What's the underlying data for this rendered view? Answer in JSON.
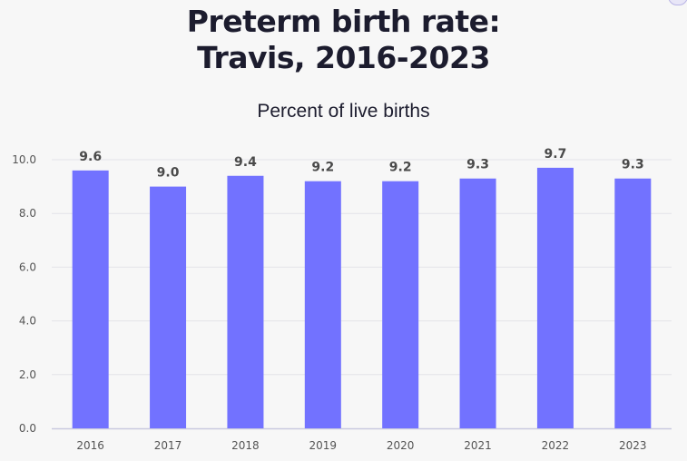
{
  "header": {
    "title_line1": "Preterm birth rate:",
    "title_line2": "Travis, 2016-2023",
    "subtitle": "Percent of live births"
  },
  "colors": {
    "bar": "#7272ff",
    "grid": "#e3e3e8",
    "axis": "#c9c9e0",
    "background": "#f7f7f7"
  },
  "chart_data": {
    "type": "bar",
    "title": "Preterm birth rate: Travis, 2016-2023",
    "subtitle": "Percent of live births",
    "categories": [
      "2016",
      "2017",
      "2018",
      "2019",
      "2020",
      "2021",
      "2022",
      "2023"
    ],
    "values": [
      9.6,
      9.0,
      9.4,
      9.2,
      9.2,
      9.3,
      9.7,
      9.3
    ],
    "data_labels": [
      "9.6",
      "9.0",
      "9.4",
      "9.2",
      "9.2",
      "9.3",
      "9.7",
      "9.3"
    ],
    "y_ticks": [
      "0.0",
      "2.0",
      "4.0",
      "6.0",
      "8.0",
      "10.0"
    ],
    "ylim": [
      0,
      10
    ],
    "grid": true,
    "legend": "none"
  }
}
